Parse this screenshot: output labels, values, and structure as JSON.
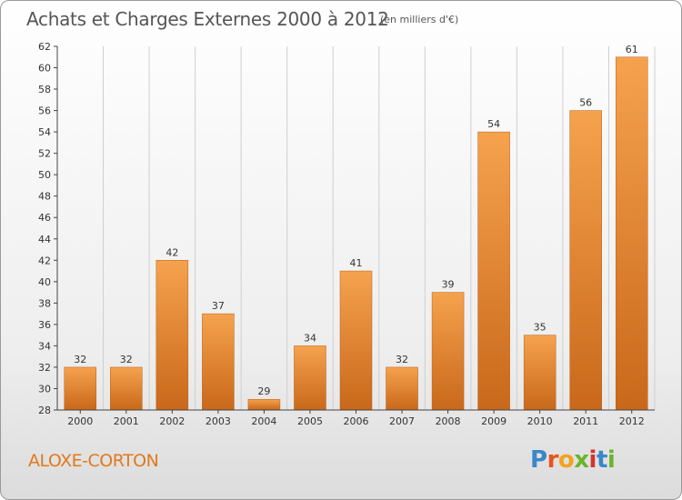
{
  "title": "Achats et Charges Externes 2000 à 2012",
  "unit": "(en milliers d'€)",
  "commune": "ALOXE-CORTON",
  "logo": {
    "letters": [
      "P",
      "r",
      "o",
      "x",
      "i",
      "t",
      "i"
    ],
    "colors": [
      "#3a86c8",
      "#e8531f",
      "#f2a31b",
      "#6ab42d",
      "#d6322b",
      "#3a86c8",
      "#6ab42d"
    ]
  },
  "colors": {
    "bar_top": "#f5a24e",
    "bar_bottom": "#c9681a",
    "axis": "#444444",
    "grid": "#cfcfcf",
    "commune": "#e07a1c"
  },
  "chart_data": {
    "type": "bar",
    "title": "Achats et Charges Externes 2000 à 2012",
    "categories": [
      "2000",
      "2001",
      "2002",
      "2003",
      "2004",
      "2005",
      "2006",
      "2007",
      "2008",
      "2009",
      "2010",
      "2011",
      "2012"
    ],
    "values": [
      32,
      32,
      42,
      37,
      29,
      34,
      41,
      32,
      39,
      54,
      35,
      56,
      61
    ],
    "ylim": [
      28,
      62
    ],
    "yticks": [
      28,
      30,
      32,
      34,
      36,
      38,
      40,
      42,
      44,
      46,
      48,
      50,
      52,
      54,
      56,
      58,
      60,
      62
    ],
    "grid": "vertical",
    "legend": "none"
  }
}
